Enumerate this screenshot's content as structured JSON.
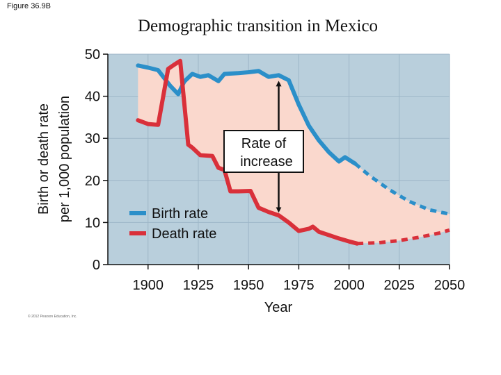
{
  "figure_label": "Figure 36.9B",
  "copyright": "© 2012 Pearson Education, Inc.",
  "colors": {
    "plot_bg": "#b9cfdc",
    "gridline": "#9db6c7",
    "shade": "#fad8cd",
    "birth": "#2b8fc9",
    "death": "#d9303a",
    "axis": "#111111"
  },
  "chart_data": {
    "type": "line",
    "title": "Demographic transition in Mexico",
    "xlabel": "Year",
    "ylabel_line1": "Birth or death rate",
    "ylabel_line2": "per 1,000 population",
    "xlim": [
      1880,
      2050
    ],
    "ylim": [
      0,
      50
    ],
    "xticks": [
      1900,
      1925,
      1950,
      1975,
      2000,
      2025,
      2050
    ],
    "yticks": [
      0,
      10,
      20,
      30,
      40,
      50
    ],
    "grid": true,
    "legend": {
      "position": "bottom-left",
      "entries": [
        "Birth rate",
        "Death rate"
      ]
    },
    "annotation": {
      "text_line1": "Rate of",
      "text_line2": "increase",
      "x": 1965,
      "from": 12,
      "to": 44
    },
    "series": [
      {
        "name": "Birth rate",
        "color_key": "birth",
        "values": [
          [
            1895,
            47.3
          ],
          [
            1900,
            46.8
          ],
          [
            1905,
            46.2
          ],
          [
            1911,
            42.5
          ],
          [
            1915,
            40.5
          ],
          [
            1918,
            43.5
          ],
          [
            1922,
            45.3
          ],
          [
            1926,
            44.6
          ],
          [
            1930,
            45
          ],
          [
            1935,
            43.6
          ],
          [
            1938,
            45.3
          ],
          [
            1945,
            45.5
          ],
          [
            1950,
            45.7
          ],
          [
            1955,
            46
          ],
          [
            1960,
            44.6
          ],
          [
            1965,
            45
          ],
          [
            1970,
            43.8
          ],
          [
            1975,
            38
          ],
          [
            1980,
            33
          ],
          [
            1985,
            29.5
          ],
          [
            1990,
            26.7
          ],
          [
            1995,
            24.5
          ],
          [
            1998,
            25.5
          ],
          [
            2003,
            24
          ]
        ],
        "projection": [
          [
            2003,
            24
          ],
          [
            2010,
            21.2
          ],
          [
            2020,
            17.8
          ],
          [
            2030,
            15
          ],
          [
            2040,
            13
          ],
          [
            2050,
            12
          ]
        ]
      },
      {
        "name": "Death rate",
        "color_key": "death",
        "values": [
          [
            1895,
            34.3
          ],
          [
            1900,
            33.4
          ],
          [
            1905,
            33.2
          ],
          [
            1910,
            46.5
          ],
          [
            1913,
            47.5
          ],
          [
            1916,
            48.4
          ],
          [
            1920,
            28.5
          ],
          [
            1922,
            27.8
          ],
          [
            1926,
            26
          ],
          [
            1932,
            25.8
          ],
          [
            1935,
            23
          ],
          [
            1938,
            22.5
          ],
          [
            1941,
            17.4
          ],
          [
            1945,
            17.4
          ],
          [
            1951,
            17.5
          ],
          [
            1955,
            13.5
          ],
          [
            1960,
            12.5
          ],
          [
            1965,
            11.7
          ],
          [
            1970,
            10
          ],
          [
            1975,
            8
          ],
          [
            1980,
            8.5
          ],
          [
            1982,
            9
          ],
          [
            1985,
            7.8
          ],
          [
            1990,
            7
          ],
          [
            1995,
            6.2
          ],
          [
            2000,
            5.5
          ],
          [
            2004,
            5
          ]
        ],
        "projection": [
          [
            2004,
            5
          ],
          [
            2015,
            5.2
          ],
          [
            2025,
            5.7
          ],
          [
            2035,
            6.5
          ],
          [
            2045,
            7.5
          ],
          [
            2050,
            8.2
          ]
        ]
      }
    ]
  }
}
